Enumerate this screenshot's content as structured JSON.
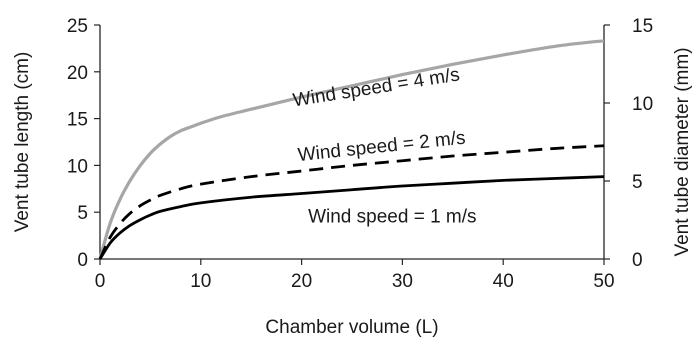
{
  "chart_data": {
    "type": "line",
    "xlabel": "Chamber volume (L)",
    "ylabel": "Vent tube length (cm)",
    "y2label": "Vent tube diameter (mm)",
    "xlim": [
      0,
      50
    ],
    "ylim": [
      0,
      25
    ],
    "y2lim": [
      0,
      15
    ],
    "xticks": [
      0,
      10,
      20,
      30,
      40,
      50
    ],
    "yticks": [
      0,
      5,
      10,
      15,
      20,
      25
    ],
    "y2ticks": [
      0,
      5,
      10,
      15
    ],
    "grid": false,
    "legend": "none",
    "series": [
      {
        "label": "Wind speed = 4 m/s",
        "color": "#a6a6a6",
        "dash": "solid",
        "x": [
          0,
          1,
          2,
          3,
          4,
          5,
          6,
          7,
          8,
          9,
          10,
          12,
          15,
          20,
          25,
          30,
          35,
          40,
          45,
          48,
          50
        ],
        "y": [
          0,
          3.8,
          6.4,
          8.4,
          10.0,
          11.3,
          12.3,
          13.1,
          13.7,
          14.1,
          14.5,
          15.2,
          16.0,
          17.3,
          18.5,
          19.7,
          20.8,
          21.8,
          22.7,
          23.1,
          23.3
        ]
      },
      {
        "label": "Wind speed = 2 m/s",
        "color": "#000000",
        "dash": "dashed",
        "x": [
          0,
          1,
          2,
          3,
          4,
          5,
          6,
          8,
          10,
          15,
          20,
          25,
          30,
          35,
          40,
          45,
          50
        ],
        "y": [
          0,
          2.3,
          3.8,
          4.9,
          5.7,
          6.3,
          6.8,
          7.5,
          8.0,
          8.8,
          9.4,
          10.0,
          10.5,
          11.0,
          11.4,
          11.8,
          12.1
        ]
      },
      {
        "label": "Wind speed = 1 m/s",
        "color": "#000000",
        "dash": "solid",
        "x": [
          0,
          1,
          2,
          3,
          4,
          5,
          6,
          8,
          10,
          15,
          20,
          25,
          30,
          35,
          40,
          45,
          50
        ],
        "y": [
          0,
          1.7,
          2.8,
          3.6,
          4.2,
          4.7,
          5.1,
          5.6,
          6.0,
          6.6,
          7.0,
          7.4,
          7.8,
          8.1,
          8.4,
          8.6,
          8.8
        ]
      }
    ],
    "annotations": [
      {
        "text": "Wind speed = 4 m/s",
        "x": 27.5,
        "y": 17.7,
        "angle": -9
      },
      {
        "text": "Wind speed = 2 m/s",
        "x": 28,
        "y": 11.4,
        "angle": -6
      },
      {
        "text": "Wind speed = 1 m/s",
        "x": 29,
        "y": 3.9,
        "angle": 0
      }
    ]
  }
}
